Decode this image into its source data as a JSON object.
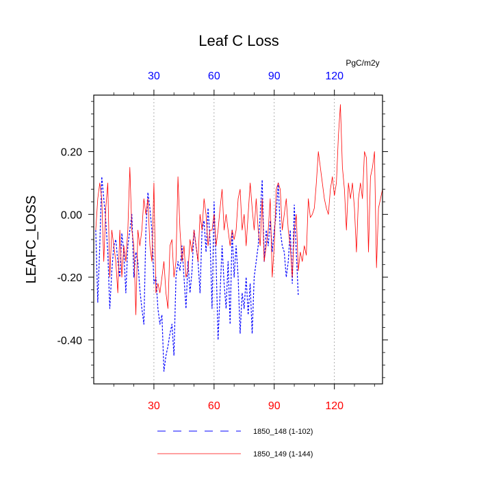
{
  "chart_data": {
    "type": "line",
    "title": "Leaf C Loss",
    "ylabel": "LEAFC_LOSS",
    "units": "PgC/m2y",
    "xlim": [
      0,
      144
    ],
    "ylim": [
      -0.54,
      0.38
    ],
    "yticks": [
      -0.4,
      -0.2,
      0.0,
      0.2
    ],
    "ytick_labels": [
      "-0.40",
      "-0.20",
      "0.00",
      "0.20"
    ],
    "xticks": [
      30,
      60,
      90,
      120
    ],
    "xtick_labels": [
      "30",
      "60",
      "90",
      "120"
    ],
    "top_axis_color": "#0000ff",
    "bottom_axis_color": "#ff0000",
    "grid": "vertical dotted at x ticks",
    "series": [
      {
        "name": "1850_148 (1-102)",
        "color": "#0000ff",
        "style": "dashed",
        "x": [
          1,
          2,
          3,
          4,
          5,
          6,
          7,
          8,
          9,
          10,
          11,
          12,
          13,
          14,
          15,
          16,
          17,
          18,
          19,
          20,
          21,
          22,
          23,
          24,
          25,
          26,
          27,
          28,
          29,
          30,
          31,
          32,
          33,
          34,
          35,
          36,
          37,
          38,
          39,
          40,
          41,
          42,
          43,
          44,
          45,
          46,
          47,
          48,
          49,
          50,
          51,
          52,
          53,
          54,
          55,
          56,
          57,
          58,
          59,
          60,
          61,
          62,
          63,
          64,
          65,
          66,
          67,
          68,
          69,
          70,
          71,
          72,
          73,
          74,
          75,
          76,
          77,
          78,
          79,
          80,
          81,
          82,
          83,
          84,
          85,
          86,
          87,
          88,
          89,
          90,
          91,
          92,
          93,
          94,
          95,
          96,
          97,
          98,
          99,
          100,
          101,
          102
        ],
        "values": [
          -0.05,
          -0.28,
          -0.1,
          0.12,
          0.05,
          -0.02,
          -0.12,
          -0.3,
          -0.18,
          -0.1,
          -0.08,
          -0.15,
          -0.2,
          -0.06,
          -0.12,
          -0.25,
          -0.1,
          -0.05,
          0.0,
          -0.2,
          -0.12,
          -0.15,
          -0.24,
          -0.3,
          -0.35,
          -0.05,
          0.07,
          0.02,
          -0.05,
          -0.22,
          -0.2,
          -0.3,
          -0.35,
          -0.32,
          -0.5,
          -0.45,
          -0.42,
          -0.38,
          -0.35,
          -0.45,
          -0.2,
          -0.15,
          -0.18,
          -0.1,
          -0.2,
          -0.3,
          -0.15,
          -0.25,
          -0.18,
          -0.05,
          -0.1,
          -0.15,
          -0.25,
          -0.05,
          -0.02,
          -0.12,
          0.02,
          -0.08,
          -0.3,
          0.04,
          -0.15,
          -0.4,
          -0.25,
          -0.1,
          -0.22,
          -0.3,
          -0.15,
          -0.35,
          -0.05,
          -0.2,
          -0.1,
          -0.2,
          -0.38,
          -0.25,
          -0.3,
          -0.2,
          -0.32,
          -0.22,
          -0.38,
          -0.2,
          -0.15,
          -0.1,
          0.0,
          0.11,
          -0.15,
          -0.05,
          -0.1,
          -0.02,
          -0.12,
          -0.05,
          0.0,
          0.1,
          -0.05,
          -0.1,
          -0.12,
          -0.2,
          -0.15,
          -0.05,
          -0.22,
          0.03,
          -0.12,
          -0.26
        ]
      },
      {
        "name": "1850_149 (1-144)",
        "color": "#ff0000",
        "style": "solid",
        "x": [
          1,
          2,
          3,
          4,
          5,
          6,
          7,
          8,
          9,
          10,
          11,
          12,
          13,
          14,
          15,
          16,
          17,
          18,
          19,
          20,
          21,
          22,
          23,
          24,
          25,
          26,
          27,
          28,
          29,
          30,
          31,
          32,
          33,
          34,
          35,
          36,
          37,
          38,
          39,
          40,
          41,
          42,
          43,
          44,
          45,
          46,
          47,
          48,
          49,
          50,
          51,
          52,
          53,
          54,
          55,
          56,
          57,
          58,
          59,
          60,
          61,
          62,
          63,
          64,
          65,
          66,
          67,
          68,
          69,
          70,
          71,
          72,
          73,
          74,
          75,
          76,
          77,
          78,
          79,
          80,
          81,
          82,
          83,
          84,
          85,
          86,
          87,
          88,
          89,
          90,
          91,
          92,
          93,
          94,
          95,
          96,
          97,
          98,
          99,
          100,
          101,
          102,
          103,
          104,
          105,
          106,
          107,
          108,
          109,
          110,
          111,
          112,
          113,
          114,
          115,
          116,
          117,
          118,
          119,
          120,
          121,
          122,
          123,
          124,
          125,
          126,
          127,
          128,
          129,
          130,
          131,
          132,
          133,
          134,
          135,
          136,
          137,
          138,
          139,
          140,
          141,
          142,
          143,
          144
        ],
        "values": [
          -0.05,
          0.05,
          0.1,
          0.05,
          -0.15,
          0.02,
          0.1,
          -0.2,
          -0.05,
          -0.1,
          -0.15,
          -0.25,
          -0.05,
          -0.2,
          -0.1,
          -0.15,
          -0.05,
          0.15,
          -0.05,
          -0.1,
          -0.32,
          -0.05,
          -0.1,
          -0.05,
          0.05,
          0.0,
          0.05,
          -0.1,
          -0.15,
          0.1,
          -0.25,
          -0.22,
          -0.25,
          -0.2,
          -0.15,
          -0.25,
          -0.3,
          -0.1,
          -0.08,
          -0.2,
          -0.15,
          0.12,
          -0.05,
          -0.15,
          -0.1,
          -0.2,
          -0.18,
          -0.08,
          -0.12,
          -0.05,
          -0.1,
          -0.15,
          0.0,
          -0.05,
          0.05,
          0.0,
          -0.1,
          -0.05,
          -0.05,
          0.0,
          -0.1,
          -0.05,
          0.02,
          0.08,
          -0.05,
          0.0,
          -0.05,
          -0.1,
          -0.05,
          -0.08,
          -0.05,
          0.05,
          0.08,
          -0.05,
          0.0,
          -0.1,
          0.0,
          0.1,
          0.02,
          -0.05,
          0.05,
          -0.05,
          -0.1,
          0.05,
          -0.15,
          -0.1,
          -0.05,
          0.05,
          -0.2,
          -0.1,
          0.08,
          0.1,
          0.08,
          -0.05,
          0.0,
          0.05,
          -0.05,
          -0.1,
          -0.2,
          -0.05,
          0.0,
          -0.18,
          -0.12,
          -0.15,
          -0.1,
          -0.13,
          0.05,
          -0.01,
          0.0,
          0.02,
          0.1,
          0.2,
          0.15,
          0.1,
          0.05,
          0.02,
          0.0,
          0.08,
          0.12,
          0.06,
          0.1,
          0.25,
          0.35,
          0.15,
          0.08,
          -0.05,
          0.1,
          0.05,
          0.1,
          0.02,
          -0.12,
          0.05,
          0.1,
          0.05,
          0.2,
          0.18,
          -0.12,
          0.12,
          0.15,
          0.2,
          -0.17,
          0.02,
          0.05,
          0.08
        ]
      }
    ]
  }
}
